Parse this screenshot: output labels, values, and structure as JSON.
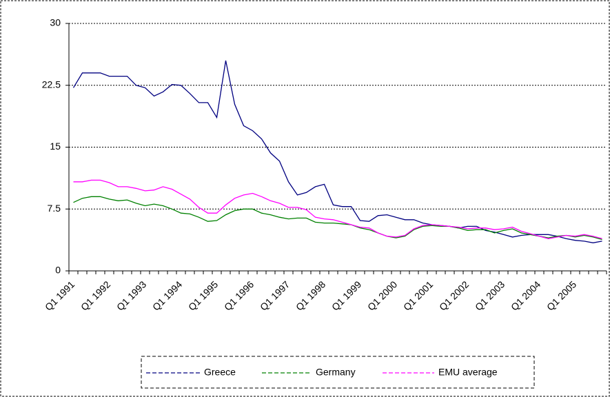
{
  "chart_data": {
    "type": "line",
    "categories": [
      "Q1 1991",
      null,
      null,
      null,
      "Q1 1992",
      null,
      null,
      null,
      "Q1 1993",
      null,
      null,
      null,
      "Q1 1994",
      null,
      null,
      null,
      "Q1 1995",
      null,
      null,
      null,
      "Q1 1996",
      null,
      null,
      null,
      "Q1 1997",
      null,
      null,
      null,
      "Q1 1998",
      null,
      null,
      null,
      "Q1 1999",
      null,
      null,
      null,
      "Q1 2000",
      null,
      null,
      null,
      "Q1 2001",
      null,
      null,
      null,
      "Q1 2002",
      null,
      null,
      null,
      "Q1 2003",
      null,
      null,
      null,
      "Q1 2004",
      null,
      null,
      null,
      "Q1 2005",
      null,
      null,
      null
    ],
    "series": [
      {
        "name": "Greece",
        "color": "#000080",
        "values": [
          22.2,
          24,
          24,
          24,
          23.6,
          23.6,
          23.6,
          22.5,
          22.2,
          21.2,
          21.7,
          22.6,
          22.5,
          21.5,
          20.4,
          20.4,
          18.6,
          25.5,
          20.2,
          17.6,
          17,
          16,
          14.3,
          13.3,
          10.8,
          9.2,
          9.5,
          10.2,
          10.5,
          8,
          7.8,
          7.8,
          6.1,
          6,
          6.7,
          6.8,
          6.5,
          6.2,
          6.2,
          5.8,
          5.6,
          5.5,
          5.4,
          5.2,
          5.4,
          5.4,
          4.9,
          4.7,
          4.4,
          4.1,
          4.3,
          4.4,
          4.4,
          4.4,
          4.2,
          3.9,
          3.7,
          3.6,
          3.4,
          3.6
        ]
      },
      {
        "name": "Germany",
        "color": "#008000",
        "values": [
          8.3,
          8.8,
          9,
          9,
          8.7,
          8.5,
          8.6,
          8.2,
          7.9,
          8.1,
          7.9,
          7.5,
          7,
          6.9,
          6.5,
          6,
          6.1,
          6.8,
          7.3,
          7.5,
          7.5,
          7,
          6.8,
          6.5,
          6.3,
          6.4,
          6.4,
          5.9,
          5.8,
          5.8,
          5.7,
          5.6,
          5.2,
          5,
          4.6,
          4.2,
          4,
          4.2,
          5,
          5.4,
          5.5,
          5.4,
          5.4,
          5.2,
          4.9,
          5,
          5,
          4.6,
          4.9,
          5.1,
          4.6,
          4.4,
          4.2,
          4,
          4.2,
          4.3,
          4.1,
          4.3,
          4.1,
          3.8
        ]
      },
      {
        "name": "EMU average",
        "color": "#ff00ff",
        "values": [
          10.8,
          10.8,
          11,
          11,
          10.7,
          10.2,
          10.2,
          10,
          9.7,
          9.8,
          10.2,
          9.9,
          9.3,
          8.7,
          7.7,
          7,
          7,
          8,
          8.8,
          9.2,
          9.4,
          9,
          8.5,
          8.2,
          7.7,
          7.7,
          7.4,
          6.5,
          6.3,
          6.2,
          5.9,
          5.6,
          5.3,
          5.2,
          4.6,
          4.2,
          4.1,
          4.3,
          5.1,
          5.5,
          5.6,
          5.5,
          5.4,
          5.3,
          5.1,
          5.2,
          5.2,
          5,
          5.1,
          5.3,
          4.8,
          4.5,
          4.2,
          3.9,
          4.1,
          4.3,
          4.2,
          4.4,
          4.2,
          3.9
        ]
      }
    ],
    "ylim": [
      0,
      30
    ],
    "yticks": [
      0,
      7.5,
      15,
      22.5,
      30
    ],
    "grid": true,
    "legend": "bottom"
  }
}
